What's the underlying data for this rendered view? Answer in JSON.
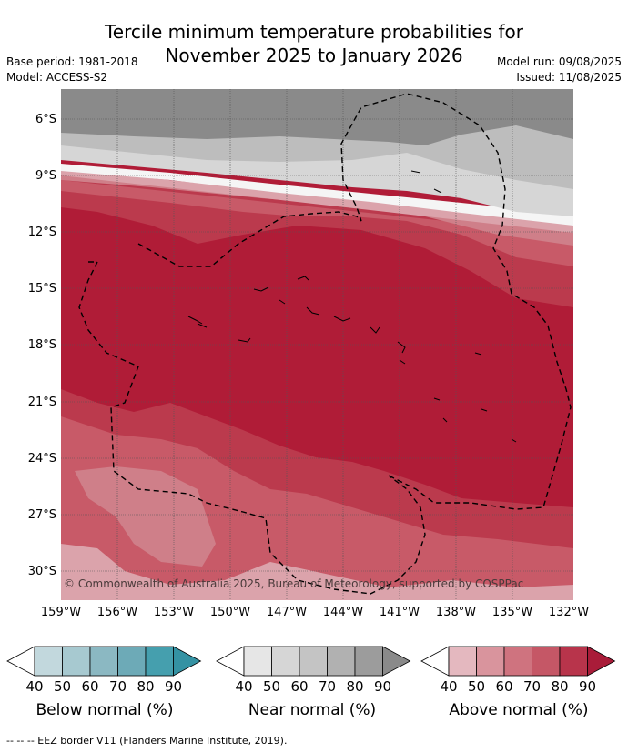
{
  "header": {
    "title_line1": "Tercile minimum temperature probabilities for",
    "title_line2": "November 2025 to January 2026",
    "base_period": "Base period: 1981-2018",
    "model": "Model: ACCESS-S2",
    "model_run": "Model run: 09/08/2025",
    "issued": "Issued: 11/08/2025"
  },
  "map": {
    "lat_labels": [
      "6°S",
      "9°S",
      "12°S",
      "15°S",
      "18°S",
      "21°S",
      "24°S",
      "27°S",
      "30°S"
    ],
    "lon_labels": [
      "159°W",
      "156°W",
      "153°W",
      "150°W",
      "147°W",
      "144°W",
      "141°W",
      "138°W",
      "135°W",
      "132°W"
    ],
    "copyright": "© Commonwealth of Australia 2025, Bureau of Meteorology, supported by COSPPac",
    "colors": {
      "near_50": "#d6d6d6",
      "near_70": "#bdbdbd",
      "near_90": "#8a8a8a",
      "above_50": "#dba3ab",
      "above_60": "#cf7f89",
      "above_70": "#c85a68",
      "above_80": "#bb3a4d",
      "above_90": "#b01c37"
    }
  },
  "colorbars": [
    {
      "label": "Below normal (%)",
      "ticks": [
        "40",
        "50",
        "60",
        "70",
        "80",
        "90"
      ],
      "colors": [
        "#ffffff",
        "#c2d8dd",
        "#a7c9d0",
        "#8bb8c2",
        "#6daab7",
        "#459fae",
        "#3492a3"
      ]
    },
    {
      "label": "Near normal (%)",
      "ticks": [
        "40",
        "50",
        "60",
        "70",
        "80",
        "90"
      ],
      "colors": [
        "#ffffff",
        "#e6e6e6",
        "#d6d6d6",
        "#c4c4c4",
        "#b1b1b1",
        "#9c9c9c",
        "#8a8a8a"
      ]
    },
    {
      "label": "Above normal (%)",
      "ticks": [
        "40",
        "50",
        "60",
        "70",
        "80",
        "90"
      ],
      "colors": [
        "#ffffff",
        "#e4b8bf",
        "#d9949d",
        "#cf737f",
        "#c55766",
        "#b8344b",
        "#a91c39"
      ]
    }
  ],
  "footnote": "--  --  -- EEZ border V11 (Flanders Marine Institute, 2019)."
}
